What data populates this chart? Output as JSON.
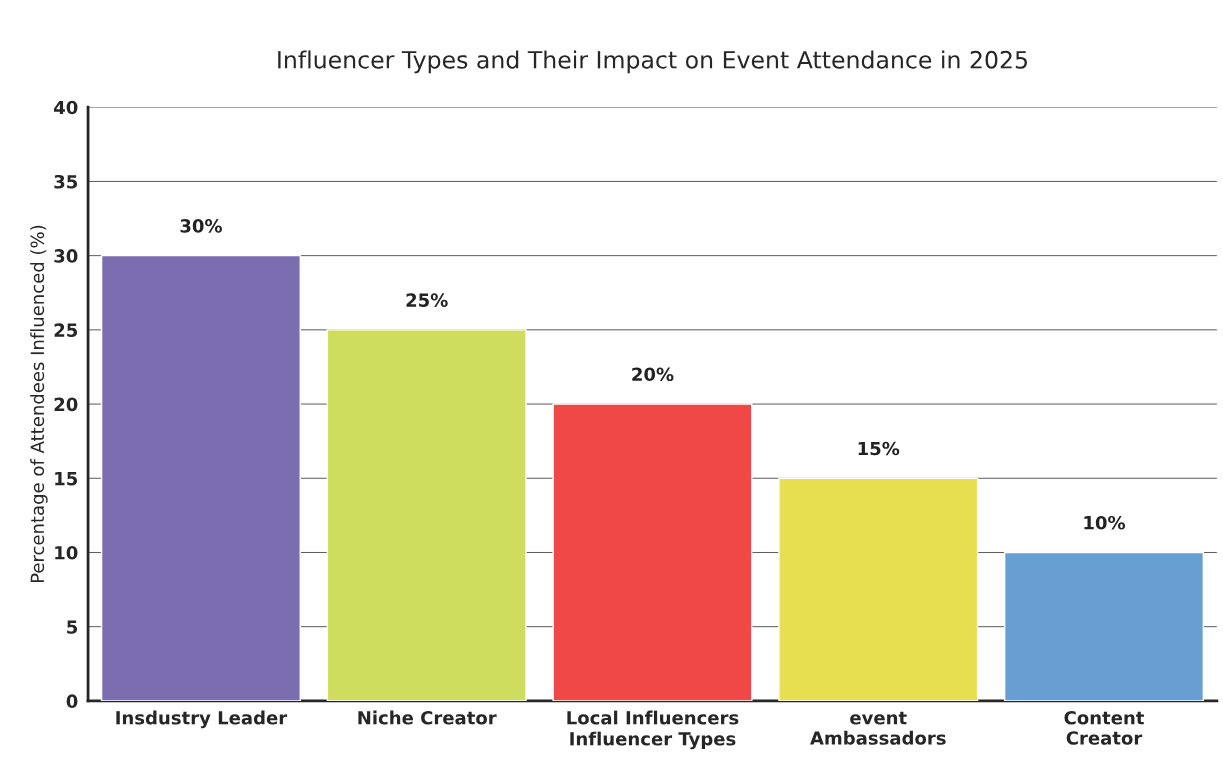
{
  "chart_data": {
    "type": "bar",
    "title": "Influencer Types and Their Impact on Event Attendance in 2025",
    "xlabel": "Influencer Types",
    "ylabel": "Percentage of Attendees Influenced (%)",
    "categories": [
      "Insdustry Leader",
      "Niche Creator",
      "Local Influencers",
      "event\nAmbassadors",
      "Content\nCreator"
    ],
    "values": [
      30,
      25,
      20,
      15,
      10
    ],
    "colors": [
      "#7b6db0",
      "#cfdd5e",
      "#ef4846",
      "#e8df50",
      "#679fd3"
    ],
    "value_labels": [
      "30%",
      "25%",
      "20%",
      "15%",
      "10%"
    ],
    "ylim": [
      0,
      40
    ],
    "yticks": [
      0,
      5,
      10,
      15,
      20,
      25,
      30,
      35,
      40
    ],
    "grid": "y"
  }
}
